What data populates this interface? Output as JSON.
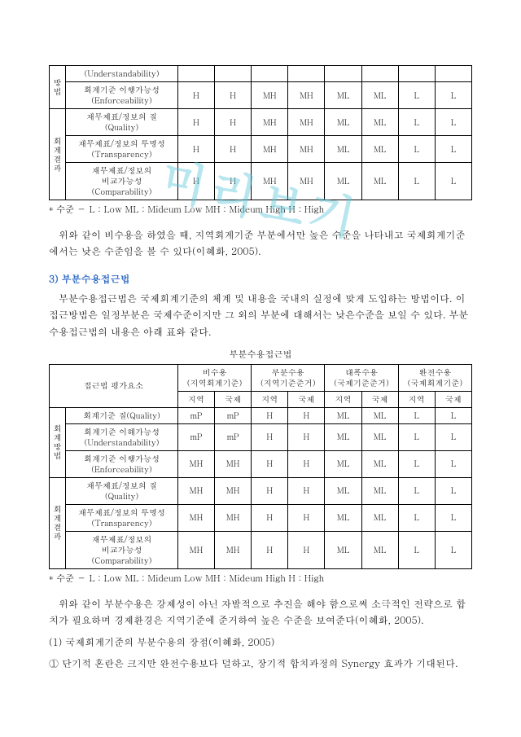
{
  "watermark": "미리보기",
  "table1": {
    "groups": [
      "방법",
      "회계결과"
    ],
    "rows": [
      {
        "g": 0,
        "label": "(Understandability)",
        "vals": [
          "",
          "",
          "",
          "",
          "",
          "",
          "",
          ""
        ]
      },
      {
        "g": 0,
        "label": "회계기준 이행가능성\n(Enforceability)",
        "vals": [
          "H",
          "H",
          "MH",
          "MH",
          "ML",
          "ML",
          "L",
          "L"
        ]
      },
      {
        "g": 1,
        "label": "재무제표/정보의 질\n(Quality)",
        "vals": [
          "H",
          "H",
          "MH",
          "MH",
          "ML",
          "ML",
          "L",
          "L"
        ]
      },
      {
        "g": 1,
        "label": "재무제표/정보의 투명성\n(Transparency)",
        "vals": [
          "H",
          "H",
          "MH",
          "MH",
          "ML",
          "ML",
          "L",
          "L"
        ]
      },
      {
        "g": 1,
        "label": "재무제표/정보의\n비교가능성\n(Comparability)",
        "vals": [
          "H",
          "H",
          "MH",
          "MH",
          "ML",
          "ML",
          "L",
          "L"
        ]
      }
    ]
  },
  "note1": "* 수준 － L : Low ML : Mideum Low MH : Mideum High H : High",
  "para1": "위와 같이 비수용을 하였을 때, 지역회계기준 부분에서만 높은 수준을 나타내고 국제회계기준에서는 낮은 수준임을 볼 수 있다(이혜화, 2005).",
  "heading3": "3) 부분수용접근법",
  "para2": "부분수용접근법은 국제회계기준의 체계 및 내용을 국내의 실정에 맞게 도입하는 방법이다. 이 접근방법은 일정부분은 국제수준이지만 그 외의 부분에 대해서는 낮은수준을 보일 수 있다. 부분수용접근법의 내용은 아래 표와 같다.",
  "caption2": "부분수용접근법",
  "table2": {
    "header_top": [
      "접근법 평가요소",
      "비수용\n(지역회계기준)",
      "부분수용\n(지역기준준거)",
      "대폭수용\n(국제기준준거)",
      "완전수용\n(국제회계기준)"
    ],
    "header_sub": [
      "지역",
      "국제",
      "지역",
      "국제",
      "지역",
      "국제",
      "지역",
      "국제"
    ],
    "groups": [
      "회계방법",
      "회계결과"
    ],
    "rows": [
      {
        "g": 0,
        "label": "회계기준 질(Quality)",
        "vals": [
          "mP",
          "mP",
          "H",
          "H",
          "ML",
          "ML",
          "L",
          "L"
        ]
      },
      {
        "g": 0,
        "label": "회계기준 이해가능성\n(Understandability)",
        "vals": [
          "mP",
          "mP",
          "H",
          "H",
          "ML",
          "ML",
          "L",
          "L"
        ]
      },
      {
        "g": 0,
        "label": "회계기준 이행가능성\n(Enforceability)",
        "vals": [
          "MH",
          "MH",
          "H",
          "H",
          "ML",
          "ML",
          "L",
          "L"
        ]
      },
      {
        "g": 1,
        "label": "재무제표/정보의 질\n(Quality)",
        "vals": [
          "MH",
          "MH",
          "H",
          "H",
          "ML",
          "ML",
          "L",
          "L"
        ]
      },
      {
        "g": 1,
        "label": "재무제표/정보의 투명성\n(Transparency)",
        "vals": [
          "MH",
          "MH",
          "H",
          "H",
          "ML",
          "ML",
          "L",
          "L"
        ]
      },
      {
        "g": 1,
        "label": "재무제표/정보의\n비교가능성\n(Comparability)",
        "vals": [
          "MH",
          "MH",
          "H",
          "H",
          "ML",
          "ML",
          "L",
          "L"
        ]
      }
    ]
  },
  "note2": "* 수준 － L : Low ML : Mideum Low MH : Mideum High H : High",
  "para3": "위와 같이 부분수용은 강제성이 아닌 자발적으로 추진을 해야 함으로써 소극적인 전략으로 합치가 필요하며 경제환경은 지역기준에 준거하여 높은 수준을 보여준다(이혜화, 2005).",
  "para4": "(1) 국제회계기준의 부분수용의 장점(이혜화, 2005)",
  "para5": "① 단기적 혼란은 크지만 완전수용보다 덜하고, 장기적 합치과정의 Synergy 효과가 기대된다."
}
